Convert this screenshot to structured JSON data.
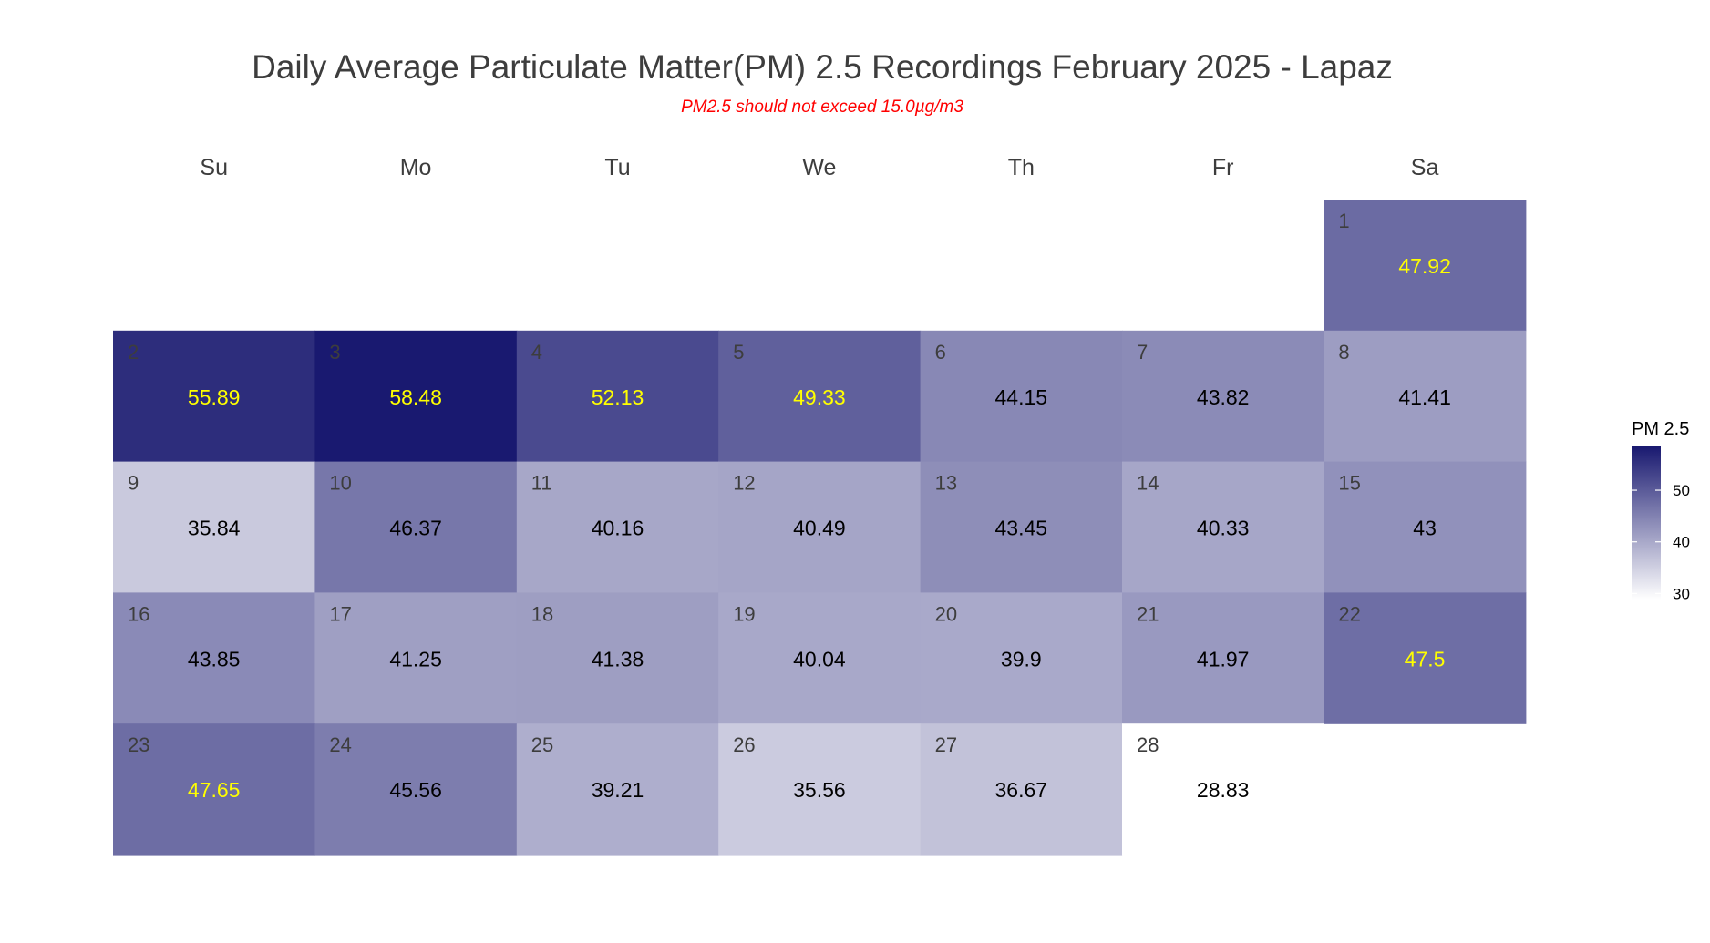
{
  "chart_data": {
    "type": "heatmap",
    "title": "Daily Average Particulate Matter(PM) 2.5 Recordings February 2025 -  Lapaz",
    "subtitle": "PM2.5 should not exceed 15.0µg/m3",
    "weekdays": [
      "Su",
      "Mo",
      "Tu",
      "We",
      "Th",
      "Fr",
      "Sa"
    ],
    "first_weekday_index": 6,
    "days": [
      {
        "day": "1",
        "value": 47.92,
        "label": "47.92"
      },
      {
        "day": "2",
        "value": 55.89,
        "label": "55.89"
      },
      {
        "day": "3",
        "value": 58.48,
        "label": "58.48"
      },
      {
        "day": "4",
        "value": 52.13,
        "label": "52.13"
      },
      {
        "day": "5",
        "value": 49.33,
        "label": "49.33"
      },
      {
        "day": "6",
        "value": 44.15,
        "label": "44.15"
      },
      {
        "day": "7",
        "value": 43.82,
        "label": "43.82"
      },
      {
        "day": "8",
        "value": 41.41,
        "label": "41.41"
      },
      {
        "day": "9",
        "value": 35.84,
        "label": "35.84"
      },
      {
        "day": "10",
        "value": 46.37,
        "label": "46.37"
      },
      {
        "day": "11",
        "value": 40.16,
        "label": "40.16"
      },
      {
        "day": "12",
        "value": 40.49,
        "label": "40.49"
      },
      {
        "day": "13",
        "value": 43.45,
        "label": "43.45"
      },
      {
        "day": "14",
        "value": 40.33,
        "label": "40.33"
      },
      {
        "day": "15",
        "value": 43.0,
        "label": "43"
      },
      {
        "day": "16",
        "value": 43.85,
        "label": "43.85"
      },
      {
        "day": "17",
        "value": 41.25,
        "label": "41.25"
      },
      {
        "day": "18",
        "value": 41.38,
        "label": "41.38"
      },
      {
        "day": "19",
        "value": 40.04,
        "label": "40.04"
      },
      {
        "day": "20",
        "value": 39.9,
        "label": "39.9"
      },
      {
        "day": "21",
        "value": 41.97,
        "label": "41.97"
      },
      {
        "day": "22",
        "value": 47.5,
        "label": "47.5"
      },
      {
        "day": "23",
        "value": 47.65,
        "label": "47.65"
      },
      {
        "day": "24",
        "value": 45.56,
        "label": "45.56"
      },
      {
        "day": "25",
        "value": 39.21,
        "label": "39.21"
      },
      {
        "day": "26",
        "value": 35.56,
        "label": "35.56"
      },
      {
        "day": "27",
        "value": 36.67,
        "label": "36.67"
      },
      {
        "day": "28",
        "value": 28.83,
        "label": "28.83"
      }
    ],
    "highlight_threshold": 47.5,
    "legend": {
      "title": "PM 2.5",
      "ticks": [
        {
          "value": 50,
          "label": "50"
        },
        {
          "value": 40,
          "label": "40"
        },
        {
          "value": 30,
          "label": "30"
        }
      ],
      "range": [
        28.83,
        58.48
      ],
      "placement": "right"
    },
    "colors": {
      "low": "#ffffff",
      "high": "#191970",
      "title": "#3d3d3d",
      "subtitle": "#ff0000",
      "highlight_text": "#ffff00",
      "normal_text": "#000000",
      "day_number": "#3d3d3d"
    }
  }
}
